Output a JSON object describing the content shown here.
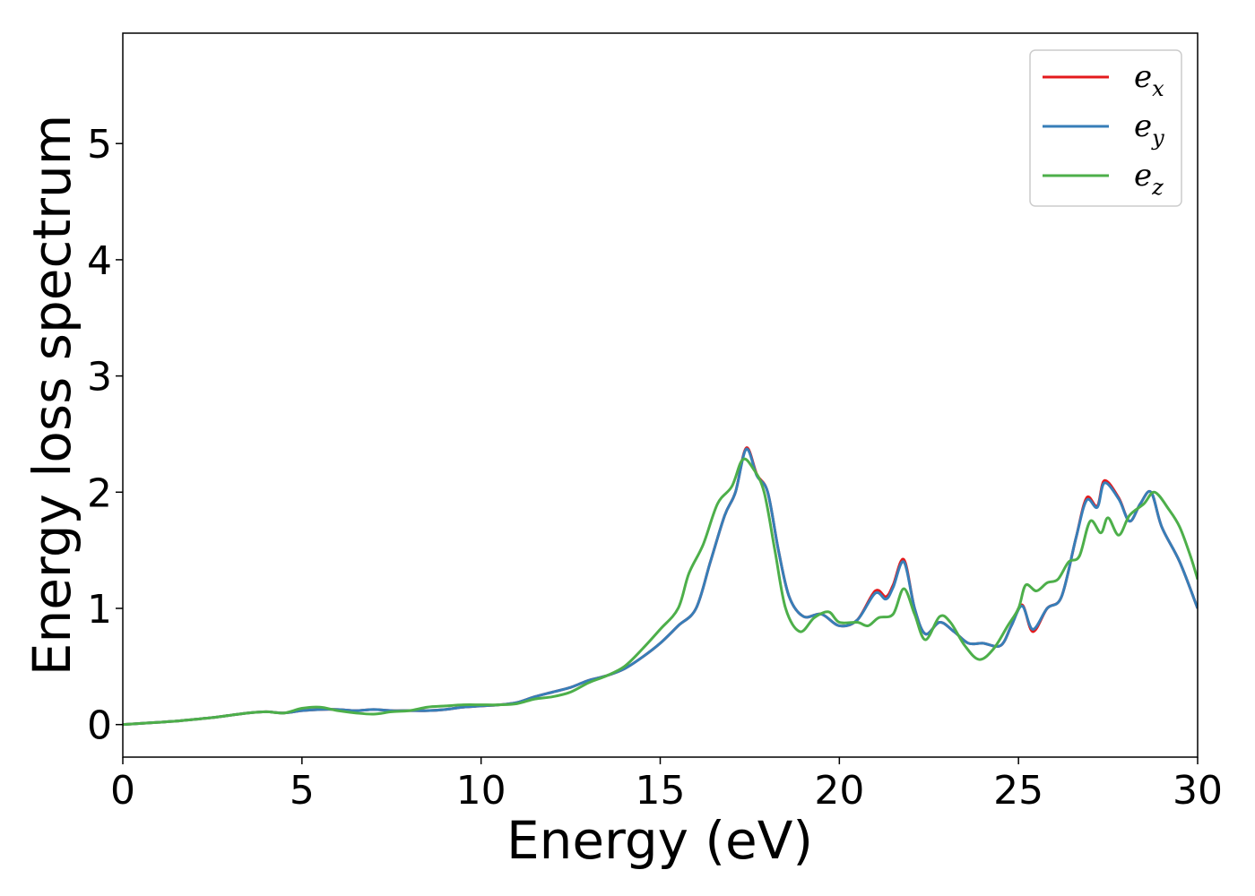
{
  "chart_data": {
    "type": "line",
    "title": "",
    "xlabel": "Energy (eV)",
    "ylabel": "Energy loss spectrum",
    "xlim": [
      0,
      30
    ],
    "ylim": [
      -0.28,
      5.95
    ],
    "xticks": [
      0,
      5,
      10,
      15,
      20,
      25,
      30
    ],
    "yticks": [
      0,
      1,
      2,
      3,
      4,
      5
    ],
    "grid": false,
    "legend": "top-right",
    "series": [
      {
        "name": "x",
        "color": "#e41a1c",
        "points": [
          [
            0,
            0
          ],
          [
            0.5,
            0.01
          ],
          [
            1,
            0.02
          ],
          [
            1.5,
            0.03
          ],
          [
            2,
            0.045
          ],
          [
            2.5,
            0.06
          ],
          [
            3,
            0.08
          ],
          [
            3.5,
            0.1
          ],
          [
            4,
            0.11
          ],
          [
            4.5,
            0.1
          ],
          [
            5,
            0.12
          ],
          [
            5.5,
            0.13
          ],
          [
            6,
            0.13
          ],
          [
            6.5,
            0.12
          ],
          [
            7,
            0.13
          ],
          [
            7.5,
            0.12
          ],
          [
            8,
            0.12
          ],
          [
            8.5,
            0.12
          ],
          [
            9,
            0.13
          ],
          [
            9.5,
            0.15
          ],
          [
            10,
            0.16
          ],
          [
            10.5,
            0.17
          ],
          [
            11,
            0.19
          ],
          [
            11.5,
            0.24
          ],
          [
            12,
            0.28
          ],
          [
            12.5,
            0.32
          ],
          [
            13,
            0.38
          ],
          [
            13.5,
            0.42
          ],
          [
            14,
            0.48
          ],
          [
            14.5,
            0.58
          ],
          [
            15,
            0.7
          ],
          [
            15.5,
            0.85
          ],
          [
            16,
            1.0
          ],
          [
            16.4,
            1.4
          ],
          [
            16.8,
            1.8
          ],
          [
            17.1,
            2.0
          ],
          [
            17.4,
            2.38
          ],
          [
            17.7,
            2.15
          ],
          [
            18,
            2.0
          ],
          [
            18.3,
            1.5
          ],
          [
            18.6,
            1.1
          ],
          [
            19,
            0.93
          ],
          [
            19.5,
            0.95
          ],
          [
            20,
            0.85
          ],
          [
            20.5,
            0.9
          ],
          [
            21,
            1.15
          ],
          [
            21.3,
            1.1
          ],
          [
            21.5,
            1.2
          ],
          [
            21.8,
            1.42
          ],
          [
            22.1,
            1.0
          ],
          [
            22.4,
            0.78
          ],
          [
            22.8,
            0.88
          ],
          [
            23.2,
            0.8
          ],
          [
            23.6,
            0.7
          ],
          [
            24,
            0.7
          ],
          [
            24.5,
            0.68
          ],
          [
            24.8,
            0.85
          ],
          [
            25.1,
            1.03
          ],
          [
            25.4,
            0.8
          ],
          [
            25.8,
            1.0
          ],
          [
            26.2,
            1.1
          ],
          [
            26.6,
            1.6
          ],
          [
            26.9,
            1.95
          ],
          [
            27.2,
            1.88
          ],
          [
            27.4,
            2.1
          ],
          [
            27.8,
            1.95
          ],
          [
            28.1,
            1.75
          ],
          [
            28.4,
            1.9
          ],
          [
            28.7,
            2.0
          ],
          [
            29,
            1.7
          ],
          [
            29.5,
            1.4
          ],
          [
            30,
            1.0
          ]
        ]
      },
      {
        "name": "y",
        "color": "#377eb8",
        "points": [
          [
            0,
            0
          ],
          [
            0.5,
            0.01
          ],
          [
            1,
            0.02
          ],
          [
            1.5,
            0.03
          ],
          [
            2,
            0.045
          ],
          [
            2.5,
            0.06
          ],
          [
            3,
            0.08
          ],
          [
            3.5,
            0.1
          ],
          [
            4,
            0.11
          ],
          [
            4.5,
            0.1
          ],
          [
            5,
            0.12
          ],
          [
            5.5,
            0.13
          ],
          [
            6,
            0.13
          ],
          [
            6.5,
            0.12
          ],
          [
            7,
            0.13
          ],
          [
            7.5,
            0.12
          ],
          [
            8,
            0.12
          ],
          [
            8.5,
            0.12
          ],
          [
            9,
            0.13
          ],
          [
            9.5,
            0.15
          ],
          [
            10,
            0.16
          ],
          [
            10.5,
            0.17
          ],
          [
            11,
            0.19
          ],
          [
            11.5,
            0.24
          ],
          [
            12,
            0.28
          ],
          [
            12.5,
            0.32
          ],
          [
            13,
            0.38
          ],
          [
            13.5,
            0.42
          ],
          [
            14,
            0.48
          ],
          [
            14.5,
            0.58
          ],
          [
            15,
            0.7
          ],
          [
            15.5,
            0.85
          ],
          [
            16,
            1.0
          ],
          [
            16.4,
            1.4
          ],
          [
            16.8,
            1.8
          ],
          [
            17.1,
            2.0
          ],
          [
            17.4,
            2.37
          ],
          [
            17.7,
            2.14
          ],
          [
            18,
            2.0
          ],
          [
            18.3,
            1.5
          ],
          [
            18.6,
            1.1
          ],
          [
            19,
            0.93
          ],
          [
            19.5,
            0.95
          ],
          [
            20,
            0.85
          ],
          [
            20.5,
            0.9
          ],
          [
            21,
            1.13
          ],
          [
            21.3,
            1.08
          ],
          [
            21.5,
            1.18
          ],
          [
            21.8,
            1.4
          ],
          [
            22.1,
            1.0
          ],
          [
            22.4,
            0.78
          ],
          [
            22.8,
            0.88
          ],
          [
            23.2,
            0.8
          ],
          [
            23.6,
            0.7
          ],
          [
            24,
            0.7
          ],
          [
            24.5,
            0.68
          ],
          [
            24.8,
            0.85
          ],
          [
            25.1,
            1.02
          ],
          [
            25.4,
            0.82
          ],
          [
            25.8,
            1.0
          ],
          [
            26.2,
            1.1
          ],
          [
            26.6,
            1.6
          ],
          [
            26.9,
            1.93
          ],
          [
            27.2,
            1.87
          ],
          [
            27.4,
            2.08
          ],
          [
            27.8,
            1.94
          ],
          [
            28.1,
            1.75
          ],
          [
            28.4,
            1.9
          ],
          [
            28.7,
            2.0
          ],
          [
            29,
            1.7
          ],
          [
            29.5,
            1.4
          ],
          [
            30,
            1.0
          ]
        ]
      },
      {
        "name": "z",
        "color": "#4daf4a",
        "points": [
          [
            0,
            0
          ],
          [
            0.5,
            0.01
          ],
          [
            1,
            0.02
          ],
          [
            1.5,
            0.03
          ],
          [
            2,
            0.045
          ],
          [
            2.5,
            0.06
          ],
          [
            3,
            0.08
          ],
          [
            3.5,
            0.1
          ],
          [
            4,
            0.11
          ],
          [
            4.5,
            0.1
          ],
          [
            5,
            0.14
          ],
          [
            5.5,
            0.15
          ],
          [
            6,
            0.12
          ],
          [
            6.5,
            0.1
          ],
          [
            7,
            0.09
          ],
          [
            7.5,
            0.11
          ],
          [
            8,
            0.12
          ],
          [
            8.5,
            0.15
          ],
          [
            9,
            0.16
          ],
          [
            9.5,
            0.17
          ],
          [
            10,
            0.17
          ],
          [
            10.5,
            0.17
          ],
          [
            11,
            0.18
          ],
          [
            11.5,
            0.22
          ],
          [
            12,
            0.24
          ],
          [
            12.5,
            0.28
          ],
          [
            13,
            0.36
          ],
          [
            13.5,
            0.42
          ],
          [
            14,
            0.5
          ],
          [
            14.5,
            0.65
          ],
          [
            15,
            0.82
          ],
          [
            15.5,
            1.0
          ],
          [
            15.8,
            1.3
          ],
          [
            16.2,
            1.55
          ],
          [
            16.6,
            1.9
          ],
          [
            17,
            2.05
          ],
          [
            17.3,
            2.28
          ],
          [
            17.6,
            2.2
          ],
          [
            17.9,
            2.0
          ],
          [
            18.2,
            1.5
          ],
          [
            18.5,
            1.0
          ],
          [
            18.9,
            0.8
          ],
          [
            19.3,
            0.92
          ],
          [
            19.7,
            0.97
          ],
          [
            20,
            0.88
          ],
          [
            20.5,
            0.88
          ],
          [
            20.8,
            0.85
          ],
          [
            21.1,
            0.92
          ],
          [
            21.5,
            0.95
          ],
          [
            21.8,
            1.17
          ],
          [
            22.1,
            0.95
          ],
          [
            22.4,
            0.73
          ],
          [
            22.8,
            0.93
          ],
          [
            23.1,
            0.88
          ],
          [
            23.5,
            0.68
          ],
          [
            23.9,
            0.56
          ],
          [
            24.3,
            0.65
          ],
          [
            24.7,
            0.85
          ],
          [
            25,
            1.0
          ],
          [
            25.2,
            1.2
          ],
          [
            25.5,
            1.15
          ],
          [
            25.8,
            1.22
          ],
          [
            26.1,
            1.25
          ],
          [
            26.4,
            1.4
          ],
          [
            26.7,
            1.45
          ],
          [
            27,
            1.75
          ],
          [
            27.3,
            1.65
          ],
          [
            27.5,
            1.78
          ],
          [
            27.8,
            1.63
          ],
          [
            28.1,
            1.8
          ],
          [
            28.5,
            1.9
          ],
          [
            28.8,
            2.0
          ],
          [
            29.2,
            1.85
          ],
          [
            29.5,
            1.7
          ],
          [
            29.8,
            1.45
          ],
          [
            30,
            1.25
          ]
        ]
      }
    ]
  }
}
